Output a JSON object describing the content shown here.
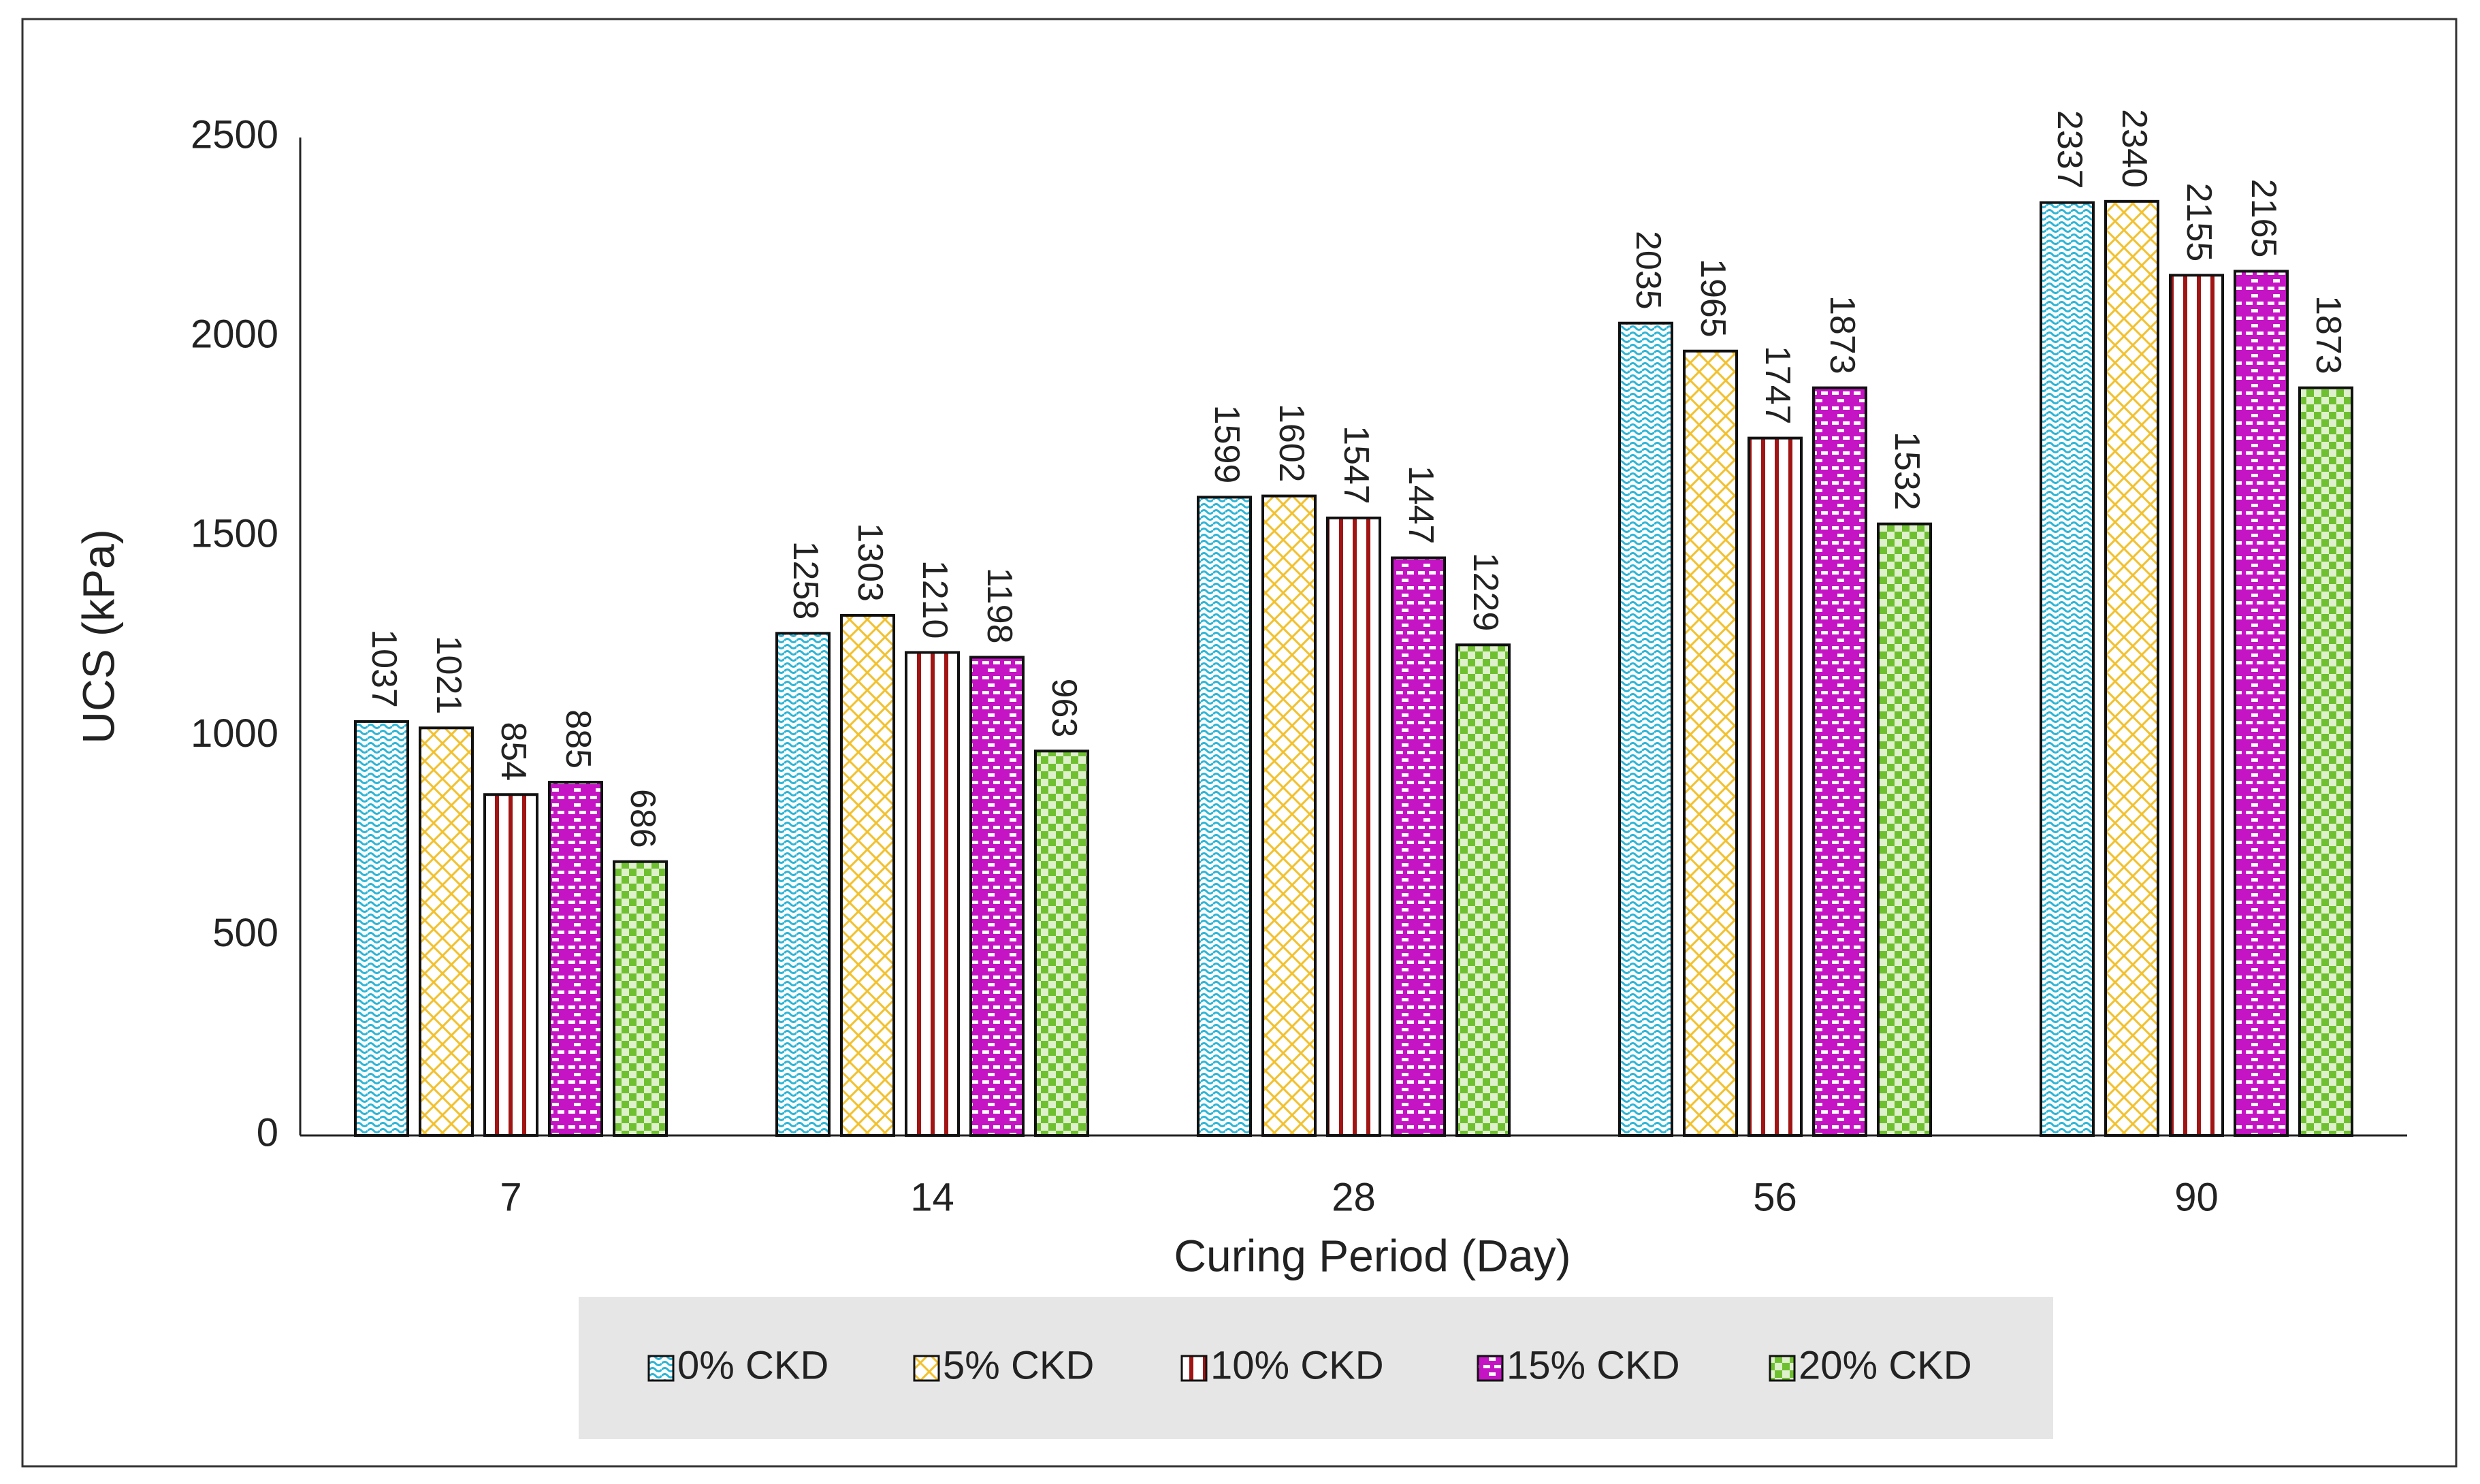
{
  "chart_data": {
    "type": "bar",
    "x_label": "Curing Period (Day)",
    "y_label": "UCS (kPa)",
    "categories": [
      "7",
      "14",
      "28",
      "56",
      "90"
    ],
    "series": [
      {
        "name": "0% CKD",
        "color": "#2db5d6",
        "pattern": "wave",
        "values": [
          1037,
          1258,
          1599,
          2035,
          2337
        ]
      },
      {
        "name": "5% CKD",
        "color": "#f2c12e",
        "pattern": "lattice",
        "values": [
          1021,
          1303,
          1602,
          1965,
          2340
        ]
      },
      {
        "name": "10% CKD",
        "color": "#a01414",
        "pattern": "stripes",
        "values": [
          854,
          1210,
          1547,
          1747,
          2155
        ]
      },
      {
        "name": "15% CKD",
        "color": "#c414c4",
        "pattern": "brick",
        "values": [
          885,
          1198,
          1447,
          1873,
          2165
        ]
      },
      {
        "name": "20% CKD",
        "color": "#6fc030",
        "pattern": "checker",
        "values": [
          686,
          963,
          1229,
          1532,
          1873
        ]
      }
    ],
    "ylim": [
      0,
      2500
    ],
    "yticks": [
      0,
      500,
      1000,
      1500,
      2000,
      2500
    ],
    "grid": false,
    "legend": "bottom"
  }
}
